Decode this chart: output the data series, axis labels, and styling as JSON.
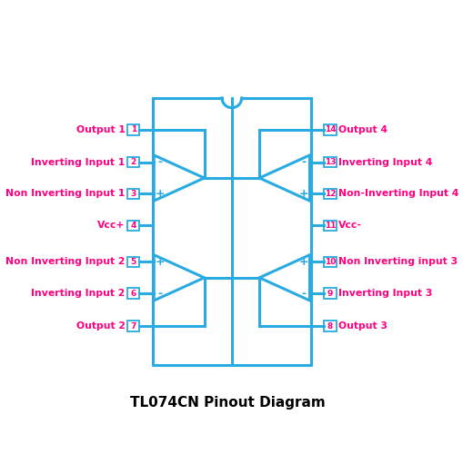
{
  "title": "TL074CN Pinout Diagram",
  "title_color": "#000000",
  "ic_color": "#29abe2",
  "label_color": "#ff007f",
  "bg_color": "#ffffff",
  "ic_linewidth": 2.2,
  "left_pins": [
    {
      "num": 1,
      "label": "Output 1"
    },
    {
      "num": 2,
      "label": "Inverting Input 1"
    },
    {
      "num": 3,
      "label": "Non Inverting Input 1"
    },
    {
      "num": 4,
      "label": "Vcc+"
    },
    {
      "num": 5,
      "label": "Non Inverting Input 2"
    },
    {
      "num": 6,
      "label": "Inverting Input 2"
    },
    {
      "num": 7,
      "label": "Output 2"
    }
  ],
  "right_pins": [
    {
      "num": 14,
      "label": "Output 4"
    },
    {
      "num": 13,
      "label": "Inverting Input 4"
    },
    {
      "num": 12,
      "label": "Non-Inverting Input 4"
    },
    {
      "num": 11,
      "label": "Vcc-"
    },
    {
      "num": 10,
      "label": "Non Inverting input 3"
    },
    {
      "num": 9,
      "label": "Inverting Input 3"
    },
    {
      "num": 8,
      "label": "Output 3"
    }
  ]
}
